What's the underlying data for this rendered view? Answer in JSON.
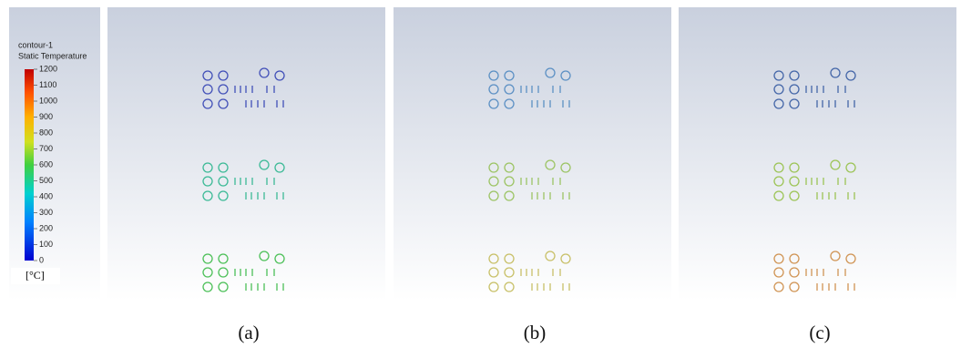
{
  "legend": {
    "title": "contour-1",
    "subtitle": "Static Temperature",
    "ticks": [
      1200,
      1100,
      1000,
      900,
      800,
      700,
      600,
      500,
      400,
      300,
      200,
      100,
      0
    ],
    "unit": "[°C]"
  },
  "panels": [
    {
      "label": "(a)"
    },
    {
      "label": "(b)"
    },
    {
      "label": "(c)"
    }
  ]
}
